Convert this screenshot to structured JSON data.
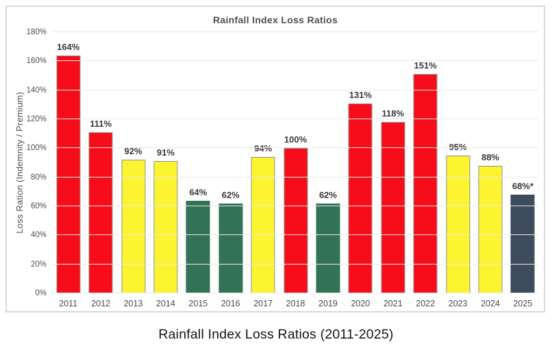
{
  "caption": "Rainfall Index Loss Ratios (2011-2025)",
  "chart_data": {
    "type": "bar",
    "title": "Rainfall Index Loss Ratios",
    "xlabel": "",
    "ylabel": "Loss Ration (Indemnity / Premium)",
    "ylim": [
      0,
      180
    ],
    "ytick_step": 20,
    "ytick_labels": [
      "0%",
      "20%",
      "40%",
      "60%",
      "80%",
      "100%",
      "120%",
      "140%",
      "160%",
      "180%"
    ],
    "grid": true,
    "legend": "none",
    "categories": [
      "2011",
      "2012",
      "2013",
      "2014",
      "2015",
      "2016",
      "2017",
      "2018",
      "2019",
      "2020",
      "2021",
      "2022",
      "2023",
      "2024",
      "2025"
    ],
    "values": [
      164,
      111,
      92,
      91,
      64,
      62,
      94,
      100,
      62,
      131,
      118,
      151,
      95,
      88,
      68
    ],
    "bar_labels": [
      "164%",
      "111%",
      "92%",
      "91%",
      "64%",
      "62%",
      "94%",
      "100%",
      "62%",
      "131%",
      "118%",
      "151%",
      "95%",
      "88%",
      "68%*"
    ],
    "bar_color_keys": [
      "red",
      "red",
      "yellow",
      "yellow",
      "green",
      "green",
      "yellow",
      "red",
      "green",
      "red",
      "red",
      "red",
      "yellow",
      "yellow",
      "slate"
    ],
    "colors": {
      "red": "#f70d1a",
      "yellow": "#fcf431",
      "green": "#327257",
      "slate": "#3e4c5d"
    },
    "bordered_keys": {
      "red": true,
      "yellow": true,
      "green": false,
      "slate": false
    },
    "bar_border_color": "#8e8e8e",
    "gridline_color": "#e9e9e9",
    "panel_border_color": "#d8d8d8"
  }
}
